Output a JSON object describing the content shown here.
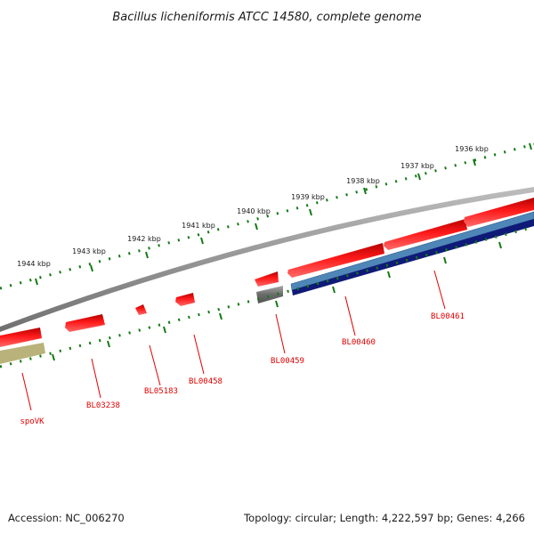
{
  "title": "Bacillus licheniformis ATCC 14580, complete genome",
  "footer": {
    "accession": "Accession: NC_006270",
    "summary": "Topology: circular; Length: 4,222,597 bp; Genes: 4,266"
  },
  "scale": {
    "unit_labels": [
      "1936 kbp",
      "1937 kbp",
      "1938 kbp",
      "1939 kbp",
      "1940 kbp",
      "1941 kbp",
      "1942 kbp",
      "1943 kbp",
      "1944 kbp"
    ],
    "tick_color": "#137a13"
  },
  "genes": [
    {
      "name": "spoVK",
      "color": "#e00000"
    },
    {
      "name": "BL03238",
      "color": "#e00000"
    },
    {
      "name": "BL05183",
      "color": "#e00000"
    },
    {
      "name": "BL00458",
      "color": "#e00000"
    },
    {
      "name": "BL00459",
      "color": "#e00000"
    },
    {
      "name": "BL00460",
      "color": "#e00000"
    },
    {
      "name": "BL00461",
      "color": "#e00000"
    }
  ],
  "colors": {
    "backbone": "#8a8a8a",
    "gene_forward": "#ff2020",
    "gene_dark": "#707070",
    "feature_blue": "#4f86b8",
    "feature_navy": "#0f1a78",
    "feature_olive": "#b9b27a"
  }
}
